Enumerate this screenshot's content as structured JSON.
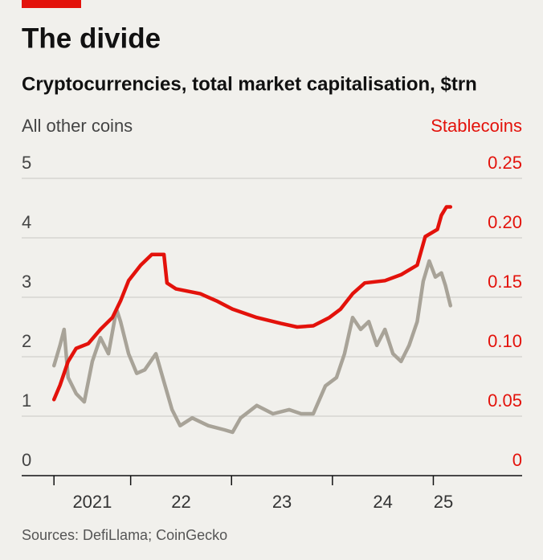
{
  "chart_data": {
    "type": "line",
    "title": "The divide",
    "subtitle": "Cryptocurrencies, total market capitalisation, $trn",
    "ylabel": "All other coins",
    "y2label": "Stablecoins",
    "source": "Sources: DefiLlama; CoinGecko",
    "xlim": [
      2020.92,
      2025.88
    ],
    "xticks": [
      2021.24,
      2022,
      2023,
      2024,
      2025
    ],
    "xlabels": [
      {
        "value": 2021.62,
        "label": "2021"
      },
      {
        "value": 2022.5,
        "label": "22"
      },
      {
        "value": 2023.5,
        "label": "23"
      },
      {
        "value": 2024.5,
        "label": "24"
      },
      {
        "value": 2025.1,
        "label": "25"
      }
    ],
    "ylim": [
      0,
      5
    ],
    "yticks": [
      0,
      1,
      2,
      3,
      4,
      5
    ],
    "y2lim": [
      0,
      0.25
    ],
    "y2ticks": [
      0,
      {
        "value": 0.05,
        "label": "0.05"
      },
      {
        "value": 0.1,
        "label": "0.10"
      },
      0.15,
      {
        "value": 0.2,
        "label": "0.20"
      },
      0.25
    ],
    "grid": true,
    "series": [
      {
        "name": "All other coins",
        "color": "#a8a398",
        "axis": "y",
        "x": [
          2021.24,
          2021.3,
          2021.34,
          2021.38,
          2021.46,
          2021.54,
          2021.62,
          2021.7,
          2021.78,
          2021.86,
          2021.9,
          2021.98,
          2022.06,
          2022.14,
          2022.25,
          2022.33,
          2022.41,
          2022.49,
          2022.61,
          2022.77,
          2022.93,
          2023.01,
          2023.09,
          2023.25,
          2023.41,
          2023.57,
          2023.69,
          2023.81,
          2023.93,
          2024.04,
          2024.12,
          2024.2,
          2024.28,
          2024.36,
          2024.44,
          2024.52,
          2024.6,
          2024.68,
          2024.76,
          2024.84,
          2024.9,
          2024.96,
          2025.02,
          2025.08,
          2025.12,
          2025.17
        ],
        "values": [
          1.85,
          2.19,
          2.46,
          1.65,
          1.38,
          1.24,
          1.92,
          2.32,
          2.05,
          2.8,
          2.59,
          2.05,
          1.72,
          1.78,
          2.05,
          1.58,
          1.11,
          0.84,
          0.97,
          0.84,
          0.77,
          0.73,
          0.97,
          1.18,
          1.04,
          1.11,
          1.04,
          1.04,
          1.51,
          1.65,
          2.05,
          2.66,
          2.46,
          2.59,
          2.19,
          2.46,
          2.05,
          1.92,
          2.19,
          2.59,
          3.27,
          3.61,
          3.34,
          3.41,
          3.2,
          2.86
        ]
      },
      {
        "name": "Stablecoins",
        "color": "#e3120b",
        "axis": "y2",
        "x": [
          2021.24,
          2021.3,
          2021.38,
          2021.46,
          2021.58,
          2021.7,
          2021.82,
          2021.9,
          2021.98,
          2022.1,
          2022.21,
          2022.33,
          2022.36,
          2022.45,
          2022.69,
          2022.85,
          2023.01,
          2023.25,
          2023.49,
          2023.65,
          2023.81,
          2023.97,
          2024.08,
          2024.2,
          2024.32,
          2024.52,
          2024.68,
          2024.84,
          2024.92,
          2025.04,
          2025.08,
          2025.13,
          2025.17
        ],
        "values": [
          0.064,
          0.076,
          0.096,
          0.107,
          0.111,
          0.123,
          0.133,
          0.147,
          0.164,
          0.177,
          0.186,
          0.186,
          0.162,
          0.157,
          0.153,
          0.147,
          0.14,
          0.133,
          0.128,
          0.125,
          0.126,
          0.133,
          0.14,
          0.153,
          0.162,
          0.164,
          0.169,
          0.177,
          0.201,
          0.207,
          0.219,
          0.226,
          0.226
        ]
      }
    ]
  }
}
